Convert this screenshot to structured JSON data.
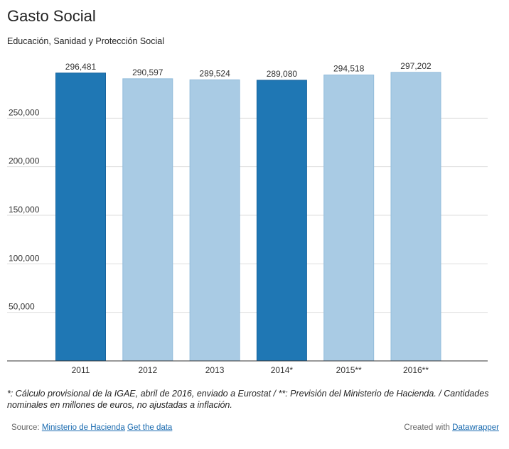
{
  "header": {
    "title": "Gasto Social",
    "subtitle": "Educación, Sanidad y Protección Social"
  },
  "notes": "*: Cálculo provisional de la IGAE, abril de 2016, enviado a Eurostat / **: Previsión del Ministerio de Hacienda. / Cantidades nominales en millones de euros, no ajustadas a inflación.",
  "footer": {
    "source_label": "Source:",
    "source_link": "Ministerio de Hacienda",
    "data_link": "Get the data",
    "created_label": "Created with",
    "created_link": "Datawrapper"
  },
  "colors": {
    "highlight": "#1f77b4",
    "normal": "#a9cbe4",
    "grid": "#dddddd",
    "axis": "#333333"
  },
  "chart_data": {
    "type": "bar",
    "title": "Gasto Social",
    "subtitle": "Educación, Sanidad y Protección Social",
    "categories": [
      "2011",
      "2012",
      "2013",
      "2014*",
      "2015**",
      "2016**"
    ],
    "values": [
      296481,
      290597,
      289524,
      289080,
      294518,
      297202
    ],
    "value_labels": [
      "296,481",
      "290,597",
      "289,524",
      "289,080",
      "294,518",
      "297,202"
    ],
    "highlighted": [
      true,
      false,
      false,
      true,
      false,
      false
    ],
    "yticks": [
      50000,
      100000,
      150000,
      200000,
      250000
    ],
    "ytick_labels": [
      "50,000",
      "100,000",
      "150,000",
      "200,000",
      "250,000"
    ],
    "ylim": [
      0,
      300000
    ],
    "grid": true,
    "xlabel": "",
    "ylabel": ""
  }
}
